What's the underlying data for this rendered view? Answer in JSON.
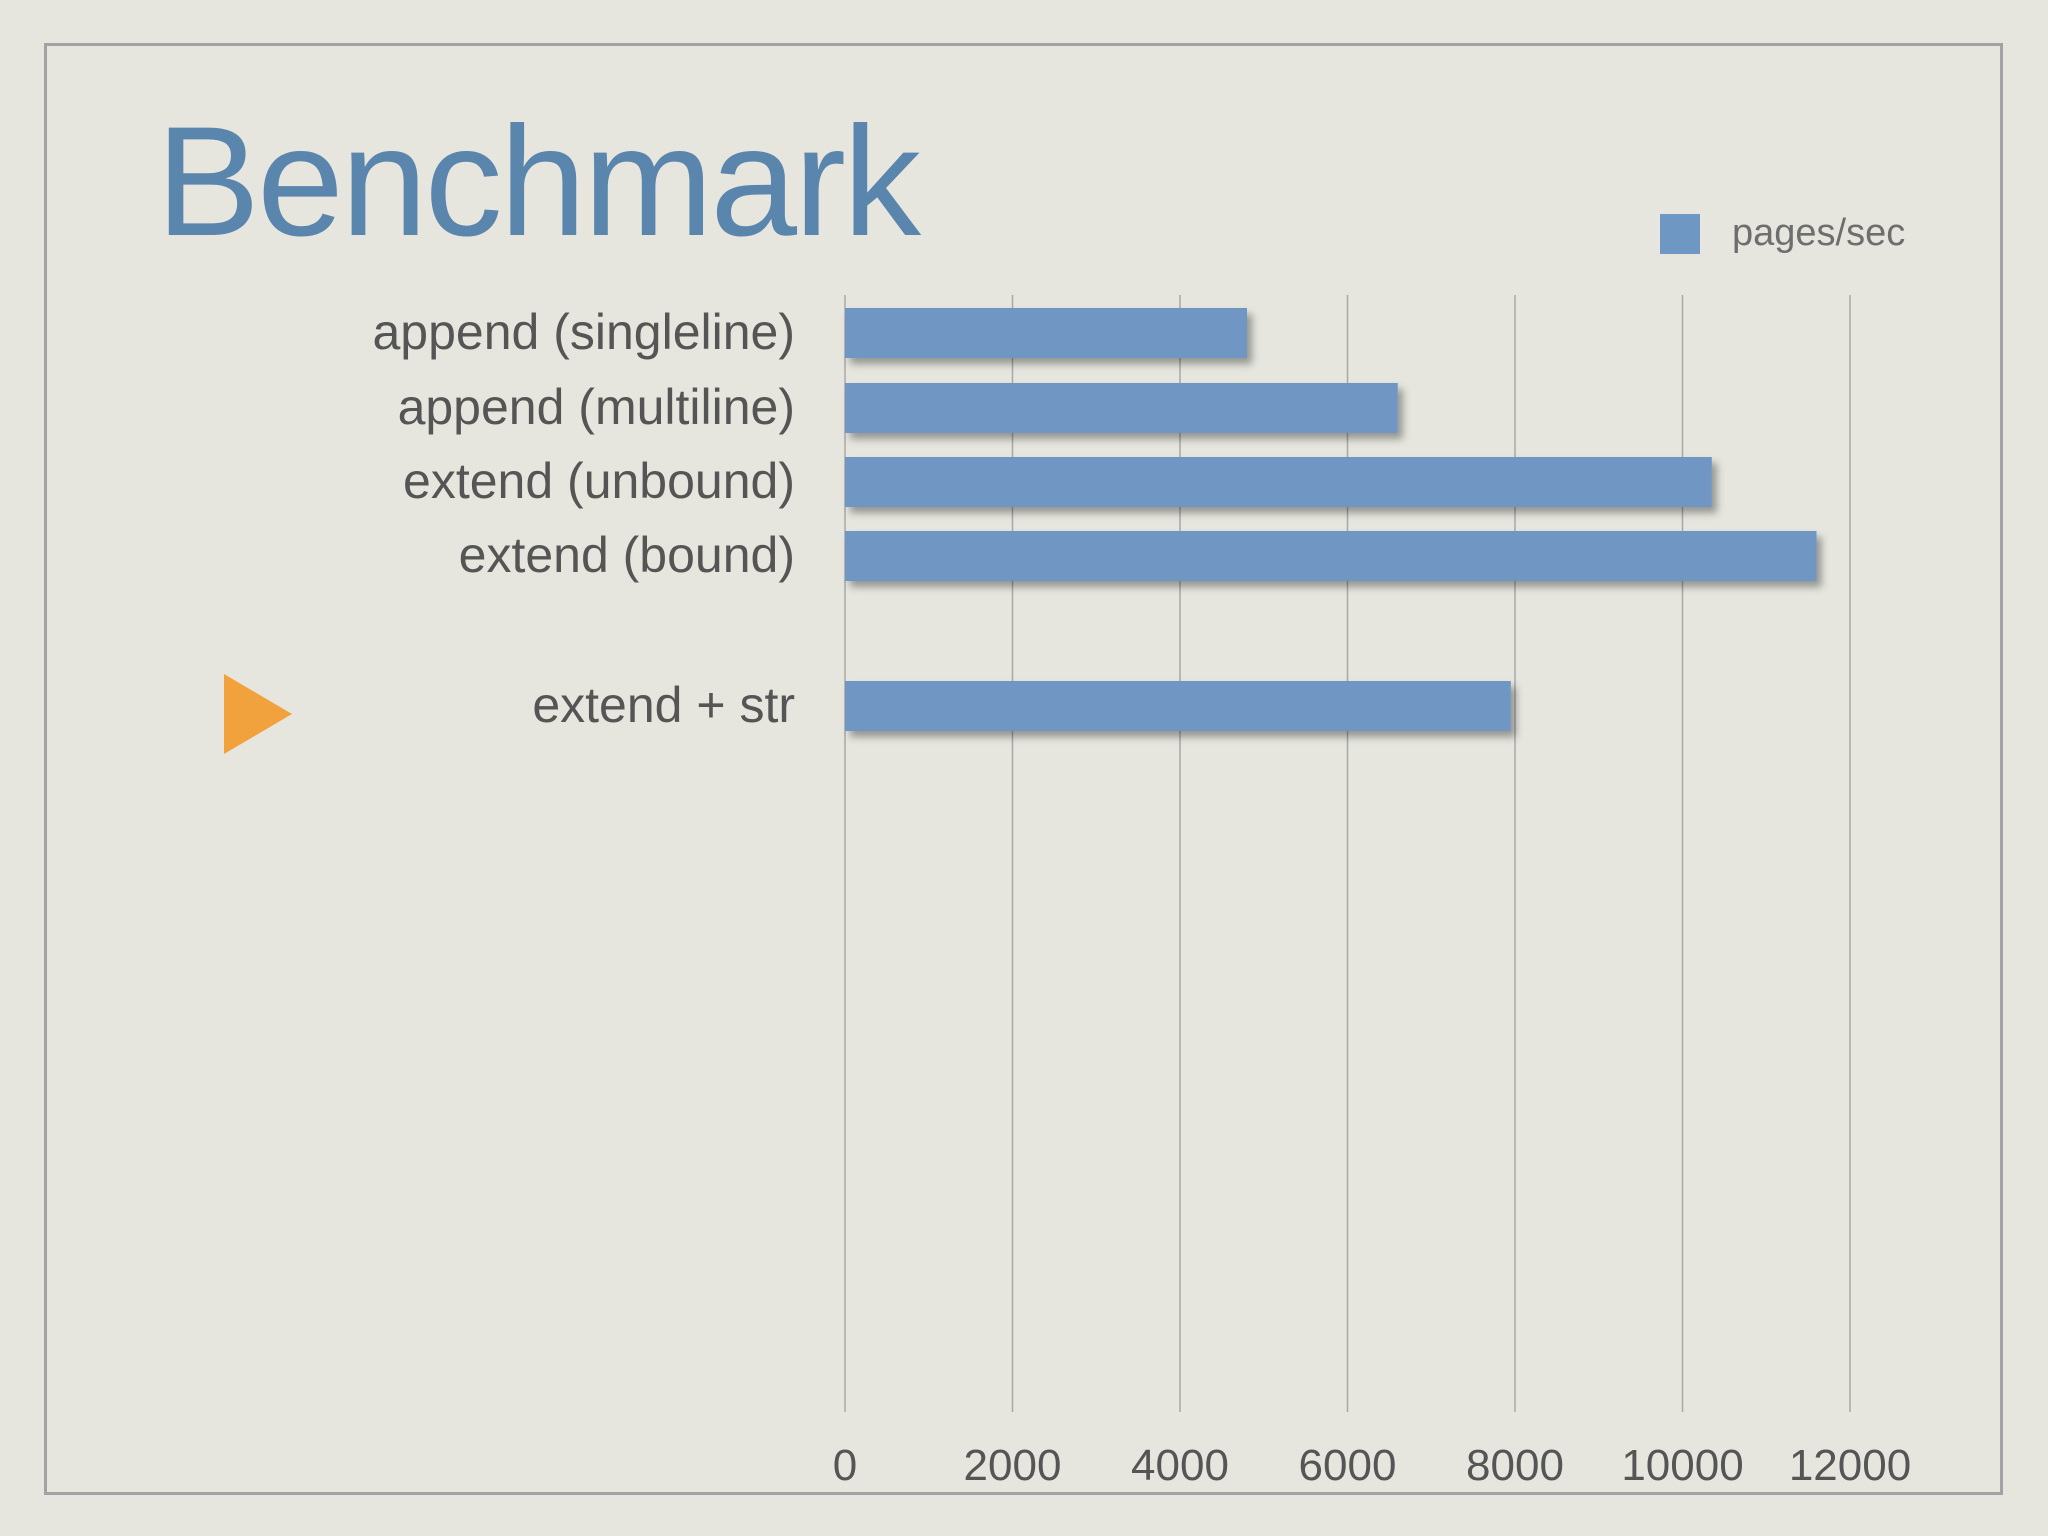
{
  "title": "Benchmark",
  "colors": {
    "background": "#e6e6df",
    "title": "#5a85ac",
    "bar": "#6f97c4",
    "accent_marker": "#f2a23c",
    "gridline": "#a8a8a8",
    "text": "#555555"
  },
  "chart_data": {
    "type": "bar",
    "orientation": "horizontal",
    "categories": [
      "append (singleline)",
      "append (multiline)",
      "extend (unbound)",
      "extend (bound)",
      "extend + str"
    ],
    "series": [
      {
        "name": "pages/sec",
        "values": [
          4800,
          6600,
          10350,
          11600,
          7950
        ]
      }
    ],
    "xticks": [
      "0",
      "2000",
      "4000",
      "6000",
      "8000",
      "10000",
      "12000"
    ],
    "xlim": [
      0,
      12000
    ],
    "grid": true,
    "legend": "top-right",
    "highlighted_category": "extend + str"
  }
}
